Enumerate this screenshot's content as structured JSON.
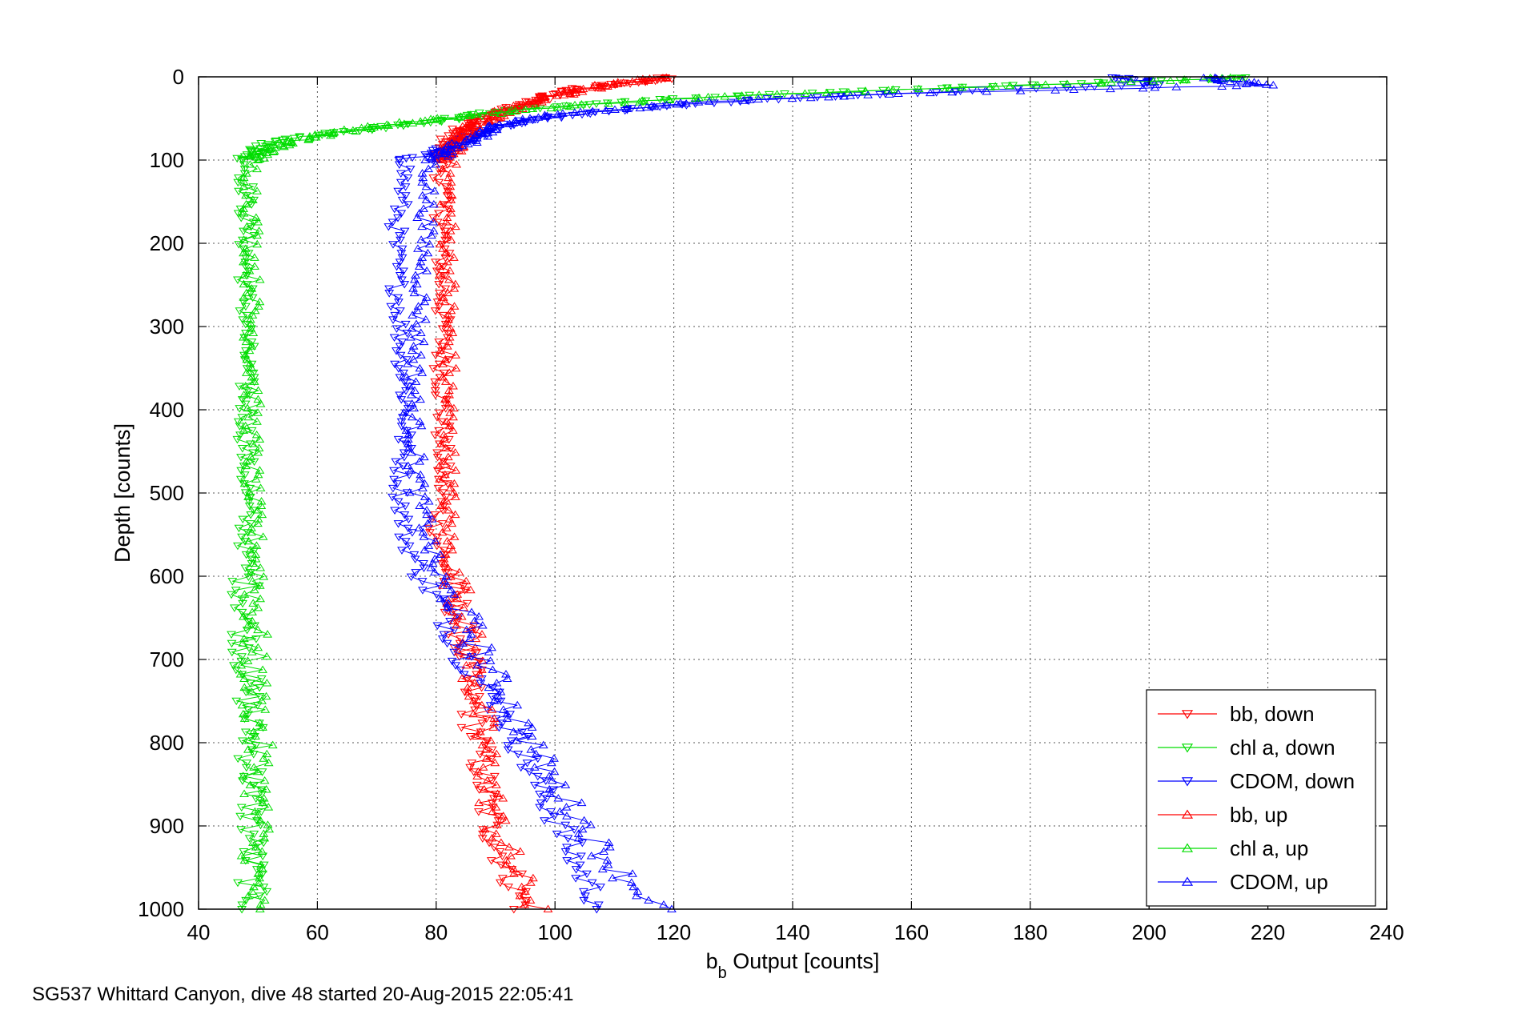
{
  "chart_data": {
    "type": "scatter",
    "xlabel_main": "b",
    "xlabel_sub": "b",
    "xlabel_rest": " Output [counts]",
    "ylabel": "Depth [counts]",
    "footer": "SG537 Whittard Canyon, dive 48 started 20-Aug-2015 22:05:41",
    "xlim": [
      40,
      240
    ],
    "ylim": [
      0,
      1000
    ],
    "y_reversed": true,
    "grid": true,
    "legend_position": "bottom-right",
    "xticks": [
      "40",
      "60",
      "80",
      "100",
      "120",
      "140",
      "160",
      "180",
      "200",
      "220",
      "240"
    ],
    "yticks": [
      "0",
      "100",
      "200",
      "300",
      "400",
      "500",
      "600",
      "700",
      "800",
      "900",
      "1000"
    ],
    "series": [
      {
        "name": "bb, down",
        "color": "#ff0000",
        "marker": "triangle-down",
        "profile": [
          [
            2,
            118
          ],
          [
            5,
            115
          ],
          [
            15,
            103
          ],
          [
            25,
            98
          ],
          [
            35,
            94
          ],
          [
            50,
            88
          ],
          [
            65,
            84
          ],
          [
            80,
            82
          ],
          [
            100,
            81
          ],
          [
            200,
            81
          ],
          [
            300,
            81
          ],
          [
            400,
            81
          ],
          [
            500,
            81
          ],
          [
            550,
            80
          ],
          [
            600,
            82
          ],
          [
            650,
            84
          ],
          [
            700,
            85
          ],
          [
            750,
            86
          ],
          [
            800,
            87
          ],
          [
            850,
            88
          ],
          [
            900,
            89
          ],
          [
            950,
            92
          ],
          [
            1000,
            95
          ]
        ]
      },
      {
        "name": "chl a, down",
        "color": "#00dd00",
        "marker": "triangle-down",
        "profile": [
          [
            2,
            215
          ],
          [
            5,
            200
          ],
          [
            12,
            170
          ],
          [
            20,
            140
          ],
          [
            30,
            110
          ],
          [
            40,
            92
          ],
          [
            50,
            83
          ],
          [
            60,
            72
          ],
          [
            70,
            60
          ],
          [
            80,
            52
          ],
          [
            90,
            50
          ],
          [
            100,
            48
          ],
          [
            150,
            48
          ],
          [
            200,
            48
          ],
          [
            300,
            48
          ],
          [
            400,
            48
          ],
          [
            500,
            48
          ],
          [
            600,
            48
          ],
          [
            700,
            48
          ],
          [
            800,
            49
          ],
          [
            900,
            49
          ],
          [
            1000,
            49
          ]
        ]
      },
      {
        "name": "CDOM, down",
        "color": "#0000ff",
        "marker": "triangle-down",
        "profile": [
          [
            2,
            195
          ],
          [
            5,
            200
          ],
          [
            10,
            200
          ],
          [
            15,
            175
          ],
          [
            25,
            140
          ],
          [
            35,
            118
          ],
          [
            45,
            103
          ],
          [
            55,
            93
          ],
          [
            70,
            87
          ],
          [
            85,
            82
          ],
          [
            100,
            75
          ],
          [
            150,
            74
          ],
          [
            200,
            73
          ],
          [
            300,
            74
          ],
          [
            400,
            75
          ],
          [
            500,
            74
          ],
          [
            560,
            75
          ],
          [
            600,
            78
          ],
          [
            650,
            82
          ],
          [
            700,
            85
          ],
          [
            750,
            90
          ],
          [
            800,
            94
          ],
          [
            850,
            97
          ],
          [
            900,
            101
          ],
          [
            950,
            104
          ],
          [
            1000,
            108
          ]
        ]
      },
      {
        "name": "bb, up",
        "color": "#ff0000",
        "marker": "triangle-up",
        "profile": [
          [
            2,
            117
          ],
          [
            8,
            110
          ],
          [
            20,
            102
          ],
          [
            30,
            97
          ],
          [
            45,
            90
          ],
          [
            60,
            86
          ],
          [
            80,
            83
          ],
          [
            100,
            82
          ],
          [
            200,
            82
          ],
          [
            300,
            82
          ],
          [
            400,
            82
          ],
          [
            500,
            82
          ],
          [
            560,
            82
          ],
          [
            600,
            83
          ],
          [
            650,
            85
          ],
          [
            700,
            86
          ],
          [
            750,
            87
          ],
          [
            800,
            88
          ],
          [
            850,
            89
          ],
          [
            900,
            90
          ],
          [
            950,
            93
          ],
          [
            1000,
            97
          ]
        ]
      },
      {
        "name": "chl a, up",
        "color": "#00dd00",
        "marker": "triangle-up",
        "profile": [
          [
            2,
            212
          ],
          [
            8,
            190
          ],
          [
            15,
            160
          ],
          [
            25,
            125
          ],
          [
            35,
            102
          ],
          [
            45,
            88
          ],
          [
            55,
            75
          ],
          [
            65,
            65
          ],
          [
            75,
            57
          ],
          [
            90,
            51
          ],
          [
            100,
            49
          ],
          [
            200,
            49
          ],
          [
            300,
            49
          ],
          [
            400,
            49
          ],
          [
            500,
            49
          ],
          [
            600,
            50
          ],
          [
            700,
            49
          ],
          [
            800,
            50
          ],
          [
            900,
            50
          ],
          [
            1000,
            49
          ]
        ]
      },
      {
        "name": "CDOM, up",
        "color": "#0000ff",
        "marker": "triangle-up",
        "profile": [
          [
            2,
            210
          ],
          [
            10,
            220
          ],
          [
            20,
            160
          ],
          [
            30,
            125
          ],
          [
            45,
            100
          ],
          [
            55,
            92
          ],
          [
            75,
            86
          ],
          [
            100,
            79
          ],
          [
            200,
            78
          ],
          [
            300,
            77
          ],
          [
            400,
            76
          ],
          [
            500,
            77
          ],
          [
            600,
            80
          ],
          [
            650,
            85
          ],
          [
            700,
            88
          ],
          [
            750,
            92
          ],
          [
            800,
            96
          ],
          [
            850,
            100
          ],
          [
            900,
            105
          ],
          [
            950,
            110
          ],
          [
            1000,
            118
          ]
        ]
      }
    ]
  }
}
